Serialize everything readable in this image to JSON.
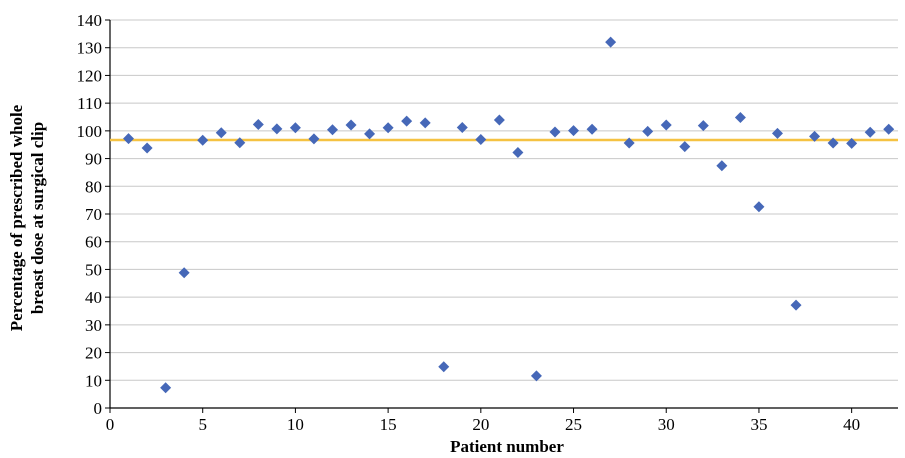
{
  "chart_data": {
    "type": "scatter",
    "xlabel": "Patient number",
    "ylabel_lines": [
      "Percentage of prescribed whole",
      "breast dose at surgical clip"
    ],
    "xlim": [
      0,
      42.5
    ],
    "ylim": [
      0,
      140
    ],
    "xticks": [
      0,
      5,
      10,
      15,
      20,
      25,
      30,
      35,
      40
    ],
    "yticks": [
      0,
      10,
      20,
      30,
      40,
      50,
      60,
      70,
      80,
      90,
      100,
      110,
      120,
      130,
      140
    ],
    "grid": "horizontal",
    "marker": "diamond",
    "marker_color": "#4668B8",
    "reference_line": {
      "y": 96.7,
      "color": "#F5C242"
    },
    "series": [
      {
        "x": [
          1,
          2,
          3,
          4,
          5,
          6,
          7,
          8,
          9,
          10,
          11,
          12,
          13,
          14,
          15,
          16,
          17,
          18,
          19,
          20,
          21,
          22,
          23,
          24,
          25,
          26,
          27,
          28,
          29,
          30,
          31,
          32,
          33,
          34,
          35,
          36,
          37,
          38,
          39,
          40,
          41,
          42
        ],
        "y": [
          97.2,
          93.8,
          7.3,
          48.8,
          96.6,
          99.3,
          95.7,
          102.3,
          100.7,
          101.1,
          97.1,
          100.4,
          102.1,
          98.9,
          101.1,
          103.5,
          102.9,
          14.9,
          101.2,
          96.9,
          103.9,
          92.2,
          11.6,
          99.6,
          100.1,
          100.6,
          132.0,
          95.6,
          99.8,
          102.1,
          94.3,
          101.9,
          87.4,
          104.8,
          72.6,
          99.1,
          37.1,
          98.0,
          95.6,
          95.5,
          99.5,
          100.6
        ]
      }
    ]
  }
}
